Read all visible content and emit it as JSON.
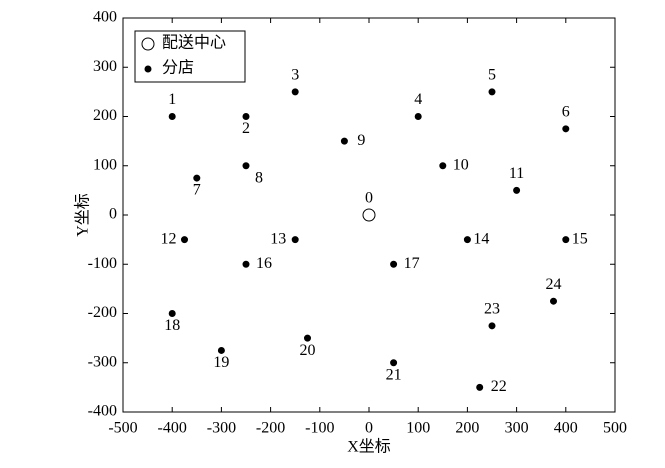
{
  "chart_data": {
    "type": "scatter",
    "x_label": "X坐标",
    "y_label": "Y坐标",
    "xlim": [
      -500,
      500
    ],
    "ylim": [
      -400,
      400
    ],
    "xticks": [
      -500,
      -400,
      -300,
      -200,
      -100,
      0,
      100,
      200,
      300,
      400,
      500
    ],
    "yticks": [
      -400,
      -300,
      -200,
      -100,
      0,
      100,
      200,
      300,
      400
    ],
    "legend": "upper left",
    "series": [
      {
        "name": "配送中心",
        "marker": "open",
        "color": "#000000",
        "x": [
          0
        ],
        "values": [
          0
        ],
        "labels": [
          "0"
        ]
      },
      {
        "name": "分店",
        "marker": "filled",
        "color": "#000000",
        "x": [
          -400,
          -250,
          -150,
          100,
          250,
          400,
          -350,
          -250,
          -50,
          150,
          300,
          -375,
          -150,
          200,
          400,
          -250,
          50,
          -400,
          -300,
          -125,
          50,
          225,
          250,
          375
        ],
        "values": [
          200,
          200,
          250,
          200,
          250,
          175,
          75,
          100,
          150,
          100,
          50,
          -50,
          -50,
          -50,
          -50,
          -100,
          -100,
          -200,
          -275,
          -250,
          -300,
          -350,
          -225,
          -175
        ],
        "labels": [
          "1",
          "2",
          "3",
          "4",
          "5",
          "6",
          "7",
          "8",
          "9",
          "10",
          "11",
          "12",
          "13",
          "14",
          "15",
          "16",
          "17",
          "18",
          "19",
          "20",
          "21",
          "22",
          "23",
          "24"
        ]
      }
    ]
  }
}
